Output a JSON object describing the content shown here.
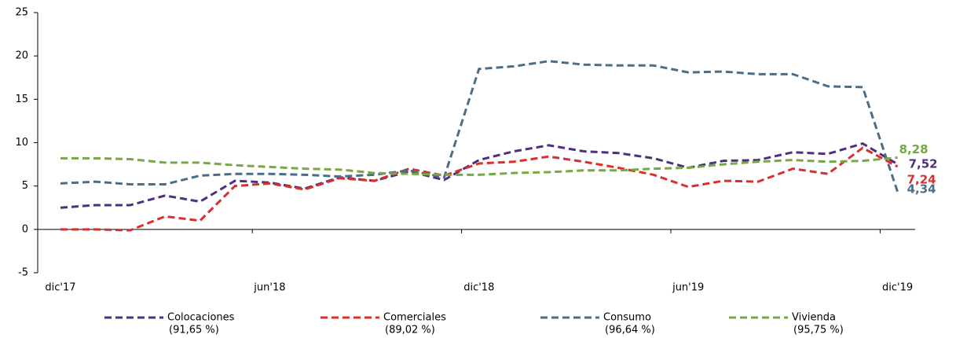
{
  "chart_data": {
    "type": "line",
    "categories": [
      "dic'17",
      null,
      null,
      null,
      null,
      null,
      "jun'18",
      null,
      null,
      null,
      null,
      null,
      "dic'18",
      null,
      null,
      null,
      null,
      null,
      "jun'19",
      null,
      null,
      null,
      null,
      null,
      "dic'19"
    ],
    "ylim": [
      -5,
      25
    ],
    "yticks": [
      -5,
      0,
      5,
      10,
      15,
      20,
      25
    ],
    "series": [
      {
        "name": "Colocaciones",
        "legend_sublabel": "(91,65 %)",
        "color": "#4f2f80",
        "values": [
          2.5,
          2.8,
          2.8,
          3.9,
          3.2,
          5.6,
          5.4,
          4.7,
          6.0,
          5.6,
          6.7,
          5.7,
          8.0,
          9.0,
          9.7,
          9.0,
          8.8,
          8.2,
          7.1,
          7.9,
          8.0,
          8.9,
          8.7,
          9.9,
          7.52
        ],
        "value_labels": [
          null,
          null,
          null,
          null,
          null,
          null,
          null,
          null,
          null,
          null,
          null,
          null,
          null,
          null,
          null,
          null,
          null,
          null,
          null,
          null,
          null,
          null,
          null,
          null,
          "7,52"
        ]
      },
      {
        "name": "Comerciales",
        "legend_sublabel": "(89,02 %)",
        "color": "#d9302c",
        "values": [
          0.0,
          0.0,
          -0.1,
          1.5,
          1.0,
          5.0,
          5.3,
          4.6,
          5.9,
          5.6,
          7.0,
          6.2,
          7.6,
          7.8,
          8.4,
          7.8,
          7.1,
          6.3,
          4.9,
          5.6,
          5.5,
          7.0,
          6.4,
          9.4,
          7.24
        ],
        "value_labels": [
          null,
          null,
          null,
          null,
          null,
          null,
          null,
          null,
          null,
          null,
          null,
          null,
          null,
          null,
          null,
          null,
          null,
          null,
          null,
          null,
          null,
          null,
          null,
          null,
          "7,24"
        ]
      },
      {
        "name": "Consumo",
        "legend_sublabel": "(96,64 %)",
        "color": "#4a6e88",
        "values": [
          5.3,
          5.5,
          5.2,
          5.2,
          6.2,
          6.4,
          6.4,
          6.3,
          6.1,
          6.3,
          6.8,
          6.0,
          18.5,
          18.8,
          19.4,
          19.0,
          18.9,
          18.9,
          18.1,
          18.2,
          17.9,
          17.9,
          16.5,
          16.4,
          4.34
        ],
        "value_labels": [
          null,
          null,
          null,
          null,
          null,
          null,
          null,
          null,
          null,
          null,
          null,
          null,
          null,
          null,
          null,
          null,
          null,
          null,
          null,
          null,
          null,
          null,
          null,
          null,
          "4,34"
        ]
      },
      {
        "name": "Vivienda",
        "legend_sublabel": "(95,75 %)",
        "color": "#76a843",
        "values": [
          8.2,
          8.2,
          8.1,
          7.7,
          7.7,
          7.4,
          7.2,
          7.0,
          6.9,
          6.5,
          6.4,
          6.3,
          6.3,
          6.5,
          6.6,
          6.8,
          6.8,
          7.0,
          7.1,
          7.5,
          7.8,
          8.0,
          7.8,
          7.9,
          8.28
        ],
        "value_labels": [
          null,
          null,
          null,
          null,
          null,
          null,
          null,
          null,
          null,
          null,
          null,
          null,
          null,
          null,
          null,
          null,
          null,
          null,
          null,
          null,
          null,
          null,
          null,
          null,
          "8,28"
        ]
      }
    ]
  }
}
